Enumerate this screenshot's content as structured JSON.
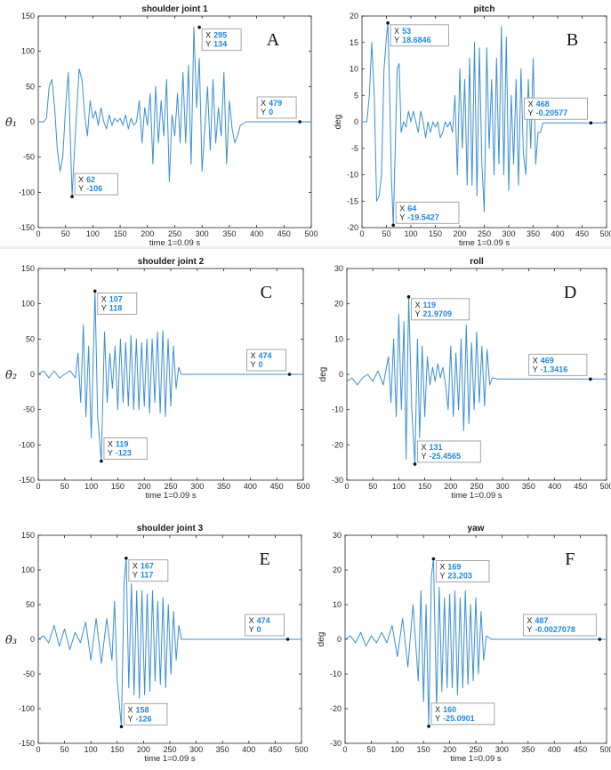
{
  "colors": {
    "line": "#3b8fd0",
    "tip_value": "#1e88e5",
    "axis": "#262626",
    "marker": "#111111"
  },
  "chart_data": [
    {
      "id": "A",
      "type": "line",
      "panel_letter": "A",
      "title": "shoulder joint 1",
      "xlabel": "time 1=0.09 s",
      "ylabel": "θ̇₁",
      "ylabel_style": "symbol",
      "xlim": [
        0,
        500
      ],
      "ylim": [
        -150,
        150
      ],
      "xticks": [
        "0",
        "50",
        "100",
        "150",
        "200",
        "250",
        "300",
        "350",
        "400",
        "450",
        "500"
      ],
      "yticks": [
        "-150",
        "-100",
        "-50",
        "0",
        "50",
        "100",
        "150"
      ],
      "series": [
        {
          "x": [
            0,
            10,
            15,
            20,
            25,
            30,
            35,
            40,
            45,
            50,
            55,
            62,
            65,
            70,
            75,
            80,
            85,
            90,
            95,
            100,
            105,
            110,
            115,
            120,
            125,
            130,
            135,
            140,
            145,
            150,
            155,
            160,
            165,
            170,
            175,
            180,
            185,
            190,
            195,
            200,
            205,
            210,
            215,
            220,
            225,
            230,
            235,
            240,
            245,
            250,
            255,
            260,
            265,
            270,
            275,
            280,
            285,
            290,
            295,
            300,
            305,
            310,
            315,
            320,
            325,
            330,
            335,
            340,
            345,
            350,
            355,
            360,
            365,
            370,
            380,
            400,
            479,
            500
          ],
          "y": [
            0,
            0,
            5,
            50,
            60,
            20,
            -40,
            -70,
            -50,
            20,
            70,
            -106,
            -60,
            10,
            75,
            60,
            10,
            -20,
            30,
            5,
            15,
            -5,
            20,
            0,
            -10,
            10,
            -5,
            5,
            0,
            5,
            -5,
            10,
            -10,
            5,
            -5,
            0,
            30,
            -30,
            20,
            -5,
            40,
            -60,
            50,
            -30,
            30,
            -20,
            60,
            -85,
            10,
            -20,
            40,
            -30,
            70,
            -30,
            80,
            -60,
            134,
            20,
            90,
            -70,
            -10,
            50,
            -40,
            60,
            -30,
            20,
            -20,
            70,
            -60,
            30,
            -10,
            -30,
            -20,
            -5,
            0,
            0,
            0,
            0
          ]
        }
      ],
      "tips": [
        {
          "x": 295,
          "y": 134,
          "label_x": "295",
          "label_y": "134",
          "side": "right"
        },
        {
          "x": 62,
          "y": -106,
          "label_x": "62",
          "label_y": "-106",
          "side": "right"
        },
        {
          "x": 479,
          "y": 0,
          "label_x": "479",
          "label_y": "0",
          "side": "left"
        }
      ]
    },
    {
      "id": "B",
      "type": "line",
      "panel_letter": "B",
      "title": "pitch",
      "xlabel": "time 1=0.09 s",
      "ylabel": "deg",
      "ylabel_style": "text",
      "xlim": [
        0,
        500
      ],
      "ylim": [
        -20,
        20
      ],
      "xticks": [
        "0",
        "50",
        "100",
        "150",
        "200",
        "250",
        "300",
        "350",
        "400",
        "450",
        "500"
      ],
      "yticks": [
        "-20",
        "-15",
        "-10",
        "-5",
        "0",
        "5",
        "10",
        "15",
        "20"
      ],
      "series": [
        {
          "x": [
            0,
            10,
            15,
            20,
            25,
            30,
            35,
            40,
            45,
            50,
            53,
            56,
            60,
            64,
            68,
            72,
            76,
            80,
            85,
            90,
            95,
            100,
            105,
            110,
            115,
            120,
            125,
            130,
            135,
            140,
            145,
            150,
            155,
            160,
            165,
            170,
            175,
            180,
            185,
            190,
            195,
            200,
            205,
            210,
            215,
            220,
            225,
            230,
            235,
            240,
            245,
            250,
            255,
            260,
            265,
            270,
            275,
            280,
            285,
            290,
            295,
            300,
            305,
            310,
            315,
            320,
            325,
            330,
            335,
            340,
            345,
            350,
            355,
            360,
            365,
            370,
            380,
            400,
            468,
            500
          ],
          "y": [
            0,
            0,
            5,
            15,
            5,
            -15,
            -14,
            -10,
            10,
            16,
            18.7,
            8,
            -10,
            -19.5,
            -5,
            10,
            11,
            -2,
            0,
            -1,
            2,
            0,
            2,
            0,
            -2,
            2,
            0,
            -3,
            0,
            -2,
            0,
            -1,
            0,
            -3,
            -2,
            0,
            -1,
            0,
            -2,
            5,
            -10,
            10,
            -5,
            8,
            -12,
            12,
            -12,
            15,
            -14,
            14,
            -8,
            -17,
            14,
            -5,
            8,
            -10,
            12,
            -8,
            18,
            -10,
            16,
            -13,
            5,
            -8,
            8,
            -12,
            10,
            -6,
            -10,
            8,
            -5,
            12,
            -8,
            -2,
            -2,
            -0.2,
            -0.2,
            -0.2,
            -0.2,
            -0.2
          ]
        }
      ],
      "tips": [
        {
          "x": 53,
          "y": 18.6846,
          "label_x": "53",
          "label_y": "18.6846",
          "side": "right"
        },
        {
          "x": 64,
          "y": -19.5427,
          "label_x": "64",
          "label_y": "-19.5427",
          "side": "right"
        },
        {
          "x": 468,
          "y": -0.20577,
          "label_x": "468",
          "label_y": "-0.20577",
          "side": "left"
        }
      ]
    },
    {
      "id": "C",
      "type": "line",
      "panel_letter": "C",
      "title": "shoulder joint 2",
      "xlabel": "time 1=0.09 s",
      "ylabel": "θ̇₂",
      "ylabel_style": "symbol",
      "xlim": [
        0,
        500
      ],
      "ylim": [
        -150,
        150
      ],
      "xticks": [
        "0",
        "50",
        "100",
        "150",
        "200",
        "250",
        "300",
        "350",
        "400",
        "450",
        "500"
      ],
      "yticks": [
        "-150",
        "-100",
        "-50",
        "0",
        "50",
        "100",
        "150"
      ],
      "series": [
        {
          "x": [
            0,
            10,
            20,
            30,
            40,
            50,
            60,
            70,
            75,
            80,
            85,
            90,
            95,
            100,
            107,
            112,
            119,
            125,
            130,
            135,
            140,
            145,
            150,
            155,
            160,
            165,
            170,
            175,
            180,
            185,
            190,
            195,
            200,
            205,
            210,
            215,
            220,
            225,
            230,
            235,
            240,
            245,
            250,
            255,
            260,
            265,
            270,
            280,
            300,
            474,
            500
          ],
          "y": [
            0,
            5,
            -5,
            5,
            -5,
            0,
            5,
            -5,
            30,
            -40,
            70,
            -60,
            40,
            -90,
            118,
            -60,
            -123,
            60,
            -40,
            30,
            -20,
            40,
            -50,
            50,
            -40,
            45,
            -45,
            55,
            -50,
            50,
            -50,
            45,
            -45,
            50,
            -55,
            50,
            -40,
            60,
            -55,
            62,
            -60,
            50,
            -45,
            40,
            -20,
            10,
            0,
            0,
            0,
            0,
            0
          ]
        }
      ],
      "tips": [
        {
          "x": 107,
          "y": 118,
          "label_x": "107",
          "label_y": "118",
          "side": "right"
        },
        {
          "x": 119,
          "y": -123,
          "label_x": "119",
          "label_y": "-123",
          "side": "right"
        },
        {
          "x": 474,
          "y": 0,
          "label_x": "474",
          "label_y": "0",
          "side": "left"
        }
      ]
    },
    {
      "id": "D",
      "type": "line",
      "panel_letter": "D",
      "title": "roll",
      "xlabel": "time 1=0.09 s",
      "ylabel": "deg",
      "ylabel_style": "text",
      "xlim": [
        0,
        500
      ],
      "ylim": [
        -30,
        30
      ],
      "xticks": [
        "0",
        "50",
        "100",
        "150",
        "200",
        "250",
        "300",
        "350",
        "400",
        "450",
        "500"
      ],
      "yticks": [
        "-30",
        "-20",
        "-10",
        "0",
        "10",
        "20",
        "30"
      ],
      "series": [
        {
          "x": [
            0,
            10,
            20,
            30,
            40,
            50,
            60,
            70,
            80,
            85,
            90,
            95,
            100,
            105,
            110,
            114,
            119,
            125,
            131,
            136,
            140,
            145,
            150,
            155,
            160,
            165,
            170,
            175,
            180,
            185,
            190,
            195,
            200,
            205,
            210,
            215,
            220,
            225,
            230,
            235,
            240,
            245,
            250,
            255,
            260,
            265,
            270,
            275,
            280,
            290,
            300,
            469,
            500
          ],
          "y": [
            -2,
            -1,
            -3,
            -1,
            0,
            -2,
            1,
            -3,
            5,
            -8,
            10,
            -12,
            17,
            -10,
            15,
            -24,
            21.97,
            -10,
            -25.46,
            10,
            -18,
            8,
            -12,
            5,
            -3,
            2,
            -2,
            3,
            -1,
            2,
            -3,
            -10,
            8,
            -12,
            6,
            -10,
            10,
            -16,
            14,
            -14,
            9,
            -10,
            12,
            -8,
            8,
            -9,
            7,
            -3,
            -1,
            -1.3,
            -1.3,
            -1.34,
            -1.34
          ]
        }
      ],
      "tips": [
        {
          "x": 119,
          "y": 21.9709,
          "label_x": "119",
          "label_y": "21.9709",
          "side": "right"
        },
        {
          "x": 131,
          "y": -25.4565,
          "label_x": "131",
          "label_y": "-25.4565",
          "side": "right"
        },
        {
          "x": 469,
          "y": -1.3416,
          "label_x": "469",
          "label_y": "-1.3416",
          "side": "left"
        }
      ]
    },
    {
      "id": "E",
      "type": "line",
      "panel_letter": "E",
      "title": "shoulder joint 3",
      "xlabel": "time 1=0.09 s",
      "ylabel": "θ̇₃",
      "ylabel_style": "symbol",
      "xlim": [
        0,
        500
      ],
      "ylim": [
        -150,
        150
      ],
      "xticks": [
        "0",
        "50",
        "100",
        "150",
        "200",
        "250",
        "300",
        "350",
        "400",
        "450",
        "500"
      ],
      "yticks": [
        "-150",
        "-100",
        "-50",
        "0",
        "50",
        "100",
        "150"
      ],
      "series": [
        {
          "x": [
            0,
            10,
            20,
            30,
            40,
            50,
            60,
            70,
            80,
            90,
            100,
            110,
            120,
            130,
            140,
            145,
            150,
            158,
            163,
            167,
            172,
            177,
            182,
            187,
            192,
            197,
            202,
            207,
            212,
            217,
            222,
            227,
            232,
            237,
            242,
            247,
            252,
            257,
            262,
            267,
            272,
            280,
            300,
            474,
            500
          ],
          "y": [
            0,
            5,
            -5,
            20,
            -10,
            15,
            -15,
            10,
            -5,
            25,
            -30,
            30,
            -35,
            30,
            -30,
            55,
            -60,
            -126,
            80,
            117,
            -70,
            80,
            -80,
            70,
            -85,
            70,
            -80,
            65,
            -75,
            70,
            -60,
            55,
            -65,
            60,
            -70,
            50,
            -50,
            40,
            -30,
            20,
            0,
            0,
            0,
            0,
            0
          ]
        }
      ],
      "tips": [
        {
          "x": 167,
          "y": 117,
          "label_x": "167",
          "label_y": "117",
          "side": "right"
        },
        {
          "x": 158,
          "y": -126,
          "label_x": "158",
          "label_y": "-126",
          "side": "right"
        },
        {
          "x": 474,
          "y": 0,
          "label_x": "474",
          "label_y": "0",
          "side": "left"
        }
      ]
    },
    {
      "id": "F",
      "type": "line",
      "panel_letter": "F",
      "title": "yaw",
      "xlabel": "time 1=0.09 s",
      "ylabel": "deg",
      "ylabel_style": "text",
      "xlim": [
        0,
        500
      ],
      "ylim": [
        -30,
        30
      ],
      "xticks": [
        "0",
        "50",
        "100",
        "150",
        "200",
        "250",
        "300",
        "350",
        "400",
        "450",
        "500"
      ],
      "yticks": [
        "-30",
        "-20",
        "-10",
        "0",
        "10",
        "20",
        "30"
      ],
      "series": [
        {
          "x": [
            0,
            10,
            20,
            30,
            40,
            50,
            60,
            70,
            80,
            90,
            100,
            110,
            120,
            130,
            140,
            145,
            150,
            155,
            160,
            165,
            169,
            175,
            180,
            185,
            190,
            195,
            200,
            205,
            210,
            215,
            220,
            225,
            230,
            235,
            240,
            245,
            250,
            255,
            260,
            265,
            270,
            280,
            300,
            487,
            500
          ],
          "y": [
            0,
            1,
            -1,
            2,
            -2,
            1,
            -1,
            2,
            -1,
            4,
            -5,
            6,
            -8,
            10,
            -12,
            14,
            -18,
            10,
            -25.09,
            18,
            23.2,
            -20,
            15,
            -15,
            12,
            -14,
            13,
            -14,
            14,
            -16,
            12,
            -14,
            14,
            -13,
            10,
            -12,
            12,
            -10,
            8,
            -6,
            1,
            0,
            0,
            0,
            0
          ]
        }
      ],
      "tips": [
        {
          "x": 169,
          "y": 23.203,
          "label_x": "169",
          "label_y": "23.203",
          "side": "right"
        },
        {
          "x": 160,
          "y": -25.0901,
          "label_x": "160",
          "label_y": "-25.0901",
          "side": "right"
        },
        {
          "x": 487,
          "y": -0.0027078,
          "label_x": "487",
          "label_y": "-0.0027078",
          "side": "left"
        }
      ]
    }
  ]
}
